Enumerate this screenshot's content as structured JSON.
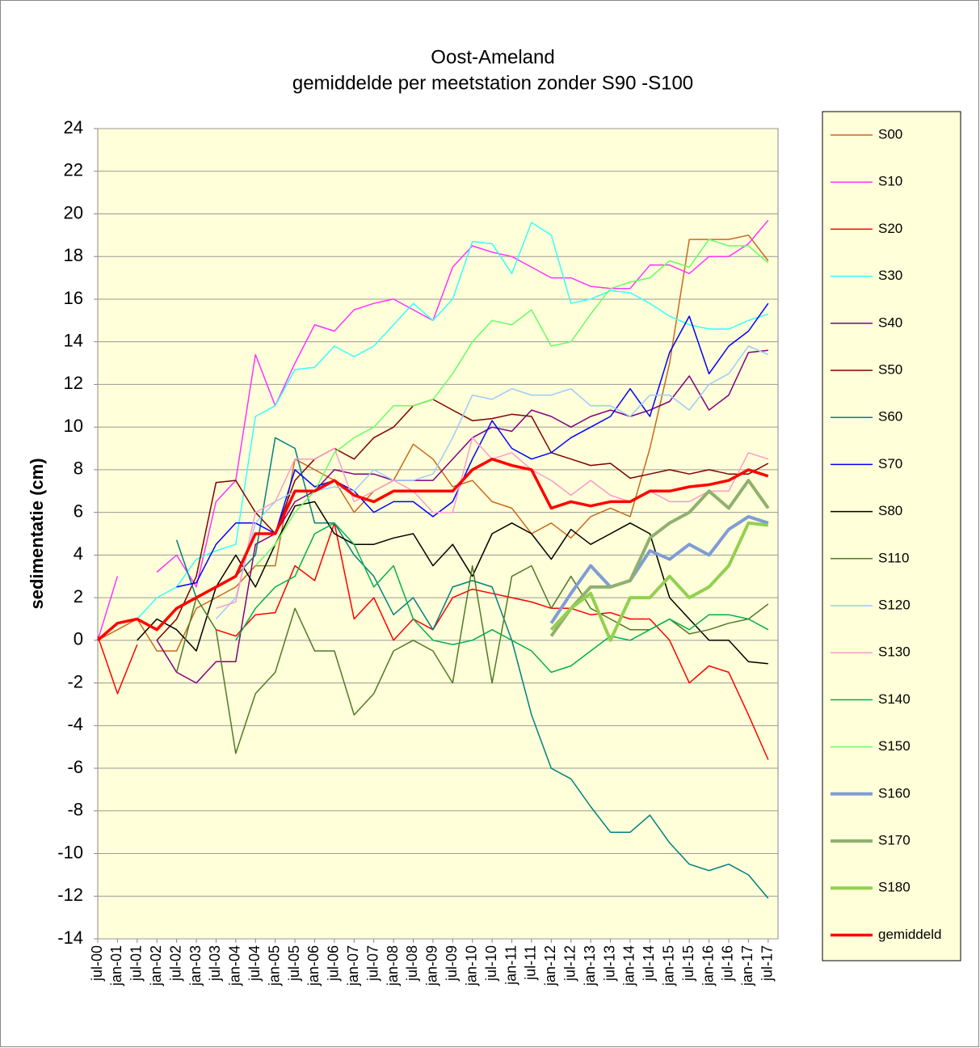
{
  "chart_data": {
    "type": "line",
    "title": "Oost-Ameland",
    "subtitle": "gemiddelde per meetstation zonder S90 -S100",
    "y_label": "sedimentatie (cm)",
    "categories": [
      "jul-00",
      "jan-01",
      "jul-01",
      "jan-02",
      "jul-02",
      "jan-03",
      "jul-03",
      "jan-04",
      "jul-04",
      "jan-05",
      "jul-05",
      "jan-06",
      "jul-06",
      "jan-07",
      "jul-07",
      "jan-08",
      "jul-08",
      "jan-09",
      "jul-09",
      "jan-10",
      "jul-10",
      "jan-11",
      "jul-11",
      "jan-12",
      "jul-12",
      "jan-13",
      "jul-13",
      "jan-14",
      "jul-14",
      "jan-15",
      "jul-15",
      "jan-16",
      "jul-16",
      "jan-17",
      "jul-17"
    ],
    "ylim": [
      -14,
      24
    ],
    "yticks": [
      -14,
      -12,
      -10,
      -8,
      -6,
      -4,
      -2,
      0,
      2,
      4,
      6,
      8,
      10,
      12,
      14,
      16,
      18,
      20,
      22,
      24
    ],
    "grid": true,
    "legend": "right",
    "background": "#ffffd9",
    "series": [
      {
        "name": "S00",
        "color": "#c8691e",
        "linewidth": 1.5,
        "values": [
          0,
          0.5,
          1,
          -0.5,
          -0.5,
          1.5,
          2,
          2.5,
          3.5,
          3.5,
          8.5,
          8,
          7.5,
          6,
          7,
          7.5,
          9.2,
          8.5,
          7.2,
          7.5,
          6.5,
          6.2,
          5,
          5.5,
          4.8,
          5.8,
          6.2,
          5.8,
          9,
          13,
          18.8,
          18.8,
          18.8,
          19,
          17.8
        ]
      },
      {
        "name": "S10",
        "color": "#ff33ff",
        "linewidth": 1.5,
        "values": [
          0,
          3,
          null,
          3.2,
          4,
          2.5,
          6.5,
          7.5,
          13.4,
          11,
          13,
          14.8,
          14.5,
          15.5,
          15.8,
          16,
          15.5,
          15,
          17.5,
          18.5,
          18.2,
          18,
          17.5,
          17,
          17,
          16.6,
          16.5,
          16.5,
          17.6,
          17.6,
          17.2,
          18,
          18,
          18.6,
          19.7
        ]
      },
      {
        "name": "S20",
        "color": "#ff0000",
        "linewidth": 1.5,
        "values": [
          0.2,
          -2.5,
          -0.2,
          null,
          null,
          null,
          0.5,
          0.2,
          1.2,
          1.3,
          3.5,
          2.8,
          5.5,
          1,
          2,
          0,
          1,
          0.5,
          2,
          2.4,
          2.2,
          2,
          1.8,
          1.5,
          1.5,
          1.2,
          1.3,
          1,
          1,
          0,
          -2,
          -1.2,
          -1.5,
          -3.5,
          -5.6
        ]
      },
      {
        "name": "S30",
        "color": "#33ffff",
        "linewidth": 1.5,
        "values": [
          0,
          0.8,
          1,
          2,
          2.5,
          3.8,
          4.2,
          4.5,
          10.5,
          11,
          12.7,
          12.8,
          13.8,
          13.3,
          13.8,
          14.8,
          15.8,
          15,
          16,
          18.7,
          18.6,
          17.2,
          19.6,
          19,
          15.8,
          16,
          16.4,
          16.3,
          15.8,
          15.2,
          14.8,
          14.6,
          14.6,
          15,
          15.3
        ]
      },
      {
        "name": "S40",
        "color": "#800080",
        "linewidth": 1.5,
        "values": [
          null,
          null,
          null,
          0,
          -1.5,
          -2,
          -1,
          -1,
          4.5,
          5,
          6.5,
          7,
          8,
          7.8,
          7.8,
          7.5,
          7.5,
          7.5,
          8.5,
          9.5,
          10,
          9.8,
          10.8,
          10.5,
          10,
          10.5,
          10.8,
          10.5,
          10.8,
          11.2,
          12.4,
          10.8,
          11.5,
          13.5,
          13.6
        ]
      },
      {
        "name": "S50",
        "color": "#800000",
        "linewidth": 1.5,
        "values": [
          null,
          null,
          null,
          0,
          1,
          3,
          7.4,
          7.5,
          6,
          5,
          7.5,
          8.5,
          9,
          8.5,
          9.5,
          10,
          11,
          11.3,
          10.8,
          10.3,
          10.4,
          10.6,
          10.5,
          8.8,
          8.5,
          8.2,
          8.3,
          7.6,
          7.8,
          8,
          7.8,
          8,
          7.8,
          7.8,
          8.3
        ]
      },
      {
        "name": "S60",
        "color": "#008080",
        "linewidth": 1.5,
        "values": [
          null,
          null,
          null,
          null,
          4.7,
          2,
          2.5,
          3,
          4,
          9.5,
          9,
          5.5,
          5.5,
          4,
          3,
          1.2,
          2,
          0.5,
          2.5,
          2.8,
          2.5,
          0,
          -3.5,
          -6,
          -6.5,
          -7.8,
          -9,
          -9,
          -8.2,
          -9.5,
          -10.5,
          -10.8,
          -10.5,
          -11,
          -12.1
        ]
      },
      {
        "name": "S70",
        "color": "#0000ff",
        "linewidth": 1.5,
        "values": [
          null,
          null,
          null,
          null,
          2.5,
          2.7,
          4.5,
          5.5,
          5.5,
          5,
          8,
          7.2,
          7.5,
          7,
          6,
          6.5,
          6.5,
          5.8,
          6.5,
          8.5,
          10.3,
          9,
          8.5,
          8.8,
          9.5,
          10,
          10.5,
          11.8,
          10.5,
          13.5,
          15.2,
          12.5,
          13.8,
          14.5,
          15.8
        ]
      },
      {
        "name": "S80",
        "color": "#000000",
        "linewidth": 1.5,
        "values": [
          null,
          null,
          0,
          1,
          0.5,
          -0.5,
          2.5,
          4,
          2.5,
          4.5,
          6.3,
          6.5,
          5,
          4.5,
          4.5,
          4.8,
          5,
          3.5,
          4.5,
          3,
          5,
          5.5,
          5,
          3.8,
          5.2,
          4.5,
          5,
          5.5,
          5,
          2,
          1,
          0,
          0,
          -1,
          -1.1
        ]
      },
      {
        "name": "S110",
        "color": "#4f7a28",
        "linewidth": 1.5,
        "values": [
          null,
          null,
          null,
          null,
          -1.5,
          2,
          0.5,
          -5.3,
          -2.5,
          -1.5,
          1.5,
          -0.5,
          -0.5,
          -3.5,
          -2.5,
          -0.5,
          0,
          -0.5,
          -2,
          3.5,
          -2,
          3,
          3.5,
          1.5,
          3,
          1.5,
          1,
          0.5,
          0.5,
          1,
          0.3,
          0.5,
          0.8,
          1,
          1.7
        ]
      },
      {
        "name": "S120",
        "color": "#99ccff",
        "linewidth": 1.5,
        "values": [
          null,
          null,
          null,
          null,
          null,
          null,
          1,
          2,
          5.5,
          6.5,
          7,
          7,
          7.2,
          7,
          8,
          7.5,
          7.5,
          7.8,
          9.5,
          11.5,
          11.3,
          11.8,
          11.5,
          11.5,
          11.8,
          11,
          11,
          10.5,
          11.5,
          11.5,
          10.8,
          12,
          12.5,
          13.8,
          13.4
        ]
      },
      {
        "name": "S130",
        "color": "#ff99cc",
        "linewidth": 1.5,
        "values": [
          null,
          null,
          null,
          null,
          null,
          null,
          1.5,
          1.8,
          6,
          6.5,
          8.5,
          8.5,
          9,
          6.5,
          7,
          7.5,
          7,
          6,
          6,
          9.5,
          8.5,
          8.8,
          8,
          7.5,
          6.8,
          7.5,
          6.8,
          6.5,
          7,
          6.5,
          6.5,
          7,
          7,
          8.8,
          8.5
        ]
      },
      {
        "name": "S140",
        "color": "#00b050",
        "linewidth": 1.5,
        "values": [
          null,
          null,
          null,
          null,
          null,
          null,
          null,
          0,
          1.5,
          2.5,
          3,
          5,
          5.5,
          4.5,
          2.5,
          3.5,
          1,
          0,
          -0.2,
          0,
          0.5,
          0,
          -0.5,
          -1.5,
          -1.2,
          -0.5,
          0.2,
          0,
          0.5,
          1,
          0.5,
          1.2,
          1.2,
          1,
          0.5
        ]
      },
      {
        "name": "S150",
        "color": "#66ff66",
        "linewidth": 1.5,
        "values": [
          null,
          null,
          null,
          null,
          null,
          null,
          null,
          null,
          3.5,
          4.5,
          6,
          7,
          8.8,
          9.5,
          10,
          11,
          11,
          11.3,
          12.5,
          14,
          15,
          14.8,
          15.5,
          13.8,
          14,
          15.3,
          16.5,
          16.8,
          17,
          17.8,
          17.5,
          18.8,
          18.5,
          18.5,
          17.7
        ]
      },
      {
        "name": "S160",
        "color": "#7f9cd6",
        "linewidth": 4,
        "values": [
          null,
          null,
          null,
          null,
          null,
          null,
          null,
          null,
          null,
          null,
          null,
          null,
          null,
          null,
          null,
          null,
          null,
          null,
          null,
          null,
          null,
          null,
          null,
          0.8,
          2.2,
          3.5,
          2.5,
          2.8,
          4.2,
          3.8,
          4.5,
          4,
          5.2,
          5.8,
          5.5
        ]
      },
      {
        "name": "S170",
        "color": "#8fb06e",
        "linewidth": 4,
        "values": [
          null,
          null,
          null,
          null,
          null,
          null,
          null,
          null,
          null,
          null,
          null,
          null,
          null,
          null,
          null,
          null,
          null,
          null,
          null,
          null,
          null,
          null,
          null,
          0.2,
          1.5,
          2.5,
          2.5,
          2.8,
          4.8,
          5.5,
          6,
          7,
          6.2,
          7.5,
          6.2
        ]
      },
      {
        "name": "S180",
        "color": "#92d050",
        "linewidth": 4,
        "values": [
          null,
          null,
          null,
          null,
          null,
          null,
          null,
          null,
          null,
          null,
          null,
          null,
          null,
          null,
          null,
          null,
          null,
          null,
          null,
          null,
          null,
          null,
          null,
          0.5,
          1.5,
          2.2,
          0,
          2,
          2,
          3,
          2,
          2.5,
          3.5,
          5.5,
          5.4
        ]
      },
      {
        "name": "gemiddeld",
        "color": "#ff0000",
        "linewidth": 3.5,
        "values": [
          0,
          0.8,
          1,
          0.5,
          1.5,
          2,
          2.5,
          3,
          5,
          5,
          7,
          7,
          7.5,
          6.8,
          6.5,
          7,
          7,
          7,
          7,
          8,
          8.5,
          8.2,
          8,
          6.2,
          6.5,
          6.3,
          6.5,
          6.5,
          7,
          7,
          7.2,
          7.3,
          7.5,
          8,
          7.7
        ]
      }
    ]
  }
}
